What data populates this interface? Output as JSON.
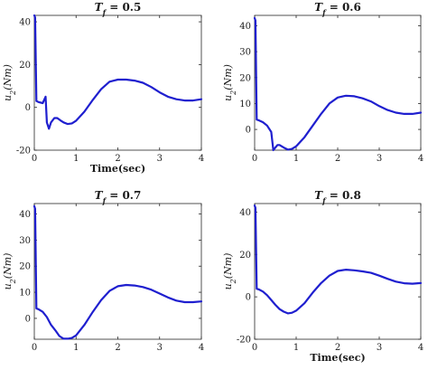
{
  "chart_data": [
    {
      "type": "line",
      "title": "T_f = 0.5",
      "xlabel": "Time(sec)",
      "ylabel": "u_2(Nm)",
      "xlim": [
        0,
        4
      ],
      "ylim": [
        -20,
        43
      ],
      "xticks": [
        "0",
        "1",
        "2",
        "3",
        "4"
      ],
      "xtick_values": [
        0,
        1,
        2,
        3,
        4
      ],
      "yticks": [
        "-20",
        "0",
        "20",
        "40"
      ],
      "ytick_values": [
        -20,
        0,
        20,
        40
      ],
      "color": "#1f1fcf",
      "series": [
        {
          "x": [
            0,
            0.02,
            0.05,
            0.1,
            0.2,
            0.27,
            0.3,
            0.35,
            0.4,
            0.48,
            0.55,
            0.62,
            0.7,
            0.8,
            0.9,
            1.0,
            1.2,
            1.4,
            1.6,
            1.8,
            2.0,
            2.2,
            2.4,
            2.6,
            2.8,
            3.0,
            3.2,
            3.4,
            3.6,
            3.8,
            4.0
          ],
          "y": [
            43,
            42,
            3,
            2.5,
            2,
            5,
            -7,
            -10,
            -7,
            -5,
            -5,
            -6,
            -7,
            -7.8,
            -7.5,
            -6.2,
            -2,
            3.5,
            8.5,
            12,
            13,
            13,
            12.5,
            11.5,
            9.5,
            7,
            5,
            3.8,
            3.2,
            3.2,
            3.8
          ]
        }
      ]
    },
    {
      "type": "line",
      "title": "T_f = 0.6",
      "xlabel": "",
      "ylabel": "u_2(Nm)",
      "xlim": [
        0,
        4
      ],
      "ylim": [
        -8,
        44
      ],
      "xticks": [
        "0",
        "1",
        "2",
        "3",
        "4"
      ],
      "xtick_values": [
        0,
        1,
        2,
        3,
        4
      ],
      "yticks": [
        "0",
        "10",
        "20",
        "30",
        "40"
      ],
      "ytick_values": [
        0,
        10,
        20,
        30,
        40
      ],
      "color": "#1f1fcf",
      "series": [
        {
          "x": [
            0,
            0.02,
            0.05,
            0.1,
            0.2,
            0.3,
            0.4,
            0.45,
            0.5,
            0.55,
            0.6,
            0.65,
            0.7,
            0.8,
            0.9,
            1.0,
            1.2,
            1.4,
            1.6,
            1.8,
            2.0,
            2.2,
            2.4,
            2.6,
            2.8,
            3.0,
            3.2,
            3.4,
            3.6,
            3.8,
            4.0
          ],
          "y": [
            43,
            42,
            3.8,
            3.5,
            2.8,
            1.5,
            -1,
            -8,
            -7,
            -6,
            -6,
            -6.5,
            -7,
            -7.8,
            -7.5,
            -6.5,
            -3,
            1.5,
            6,
            10,
            12.3,
            13,
            12.8,
            12,
            10.8,
            9,
            7.5,
            6.5,
            6,
            6,
            6.5
          ]
        }
      ]
    },
    {
      "type": "line",
      "title": "T_f = 0.7",
      "xlabel": "",
      "ylabel": "u_2(Nm)",
      "xlim": [
        0,
        4
      ],
      "ylim": [
        -8,
        44
      ],
      "xticks": [
        "0",
        "1",
        "2",
        "3",
        "4"
      ],
      "xtick_values": [
        0,
        1,
        2,
        3,
        4
      ],
      "yticks": [
        "0",
        "10",
        "20",
        "30",
        "40"
      ],
      "ytick_values": [
        0,
        10,
        20,
        30,
        40
      ],
      "color": "#1f1fcf",
      "series": [
        {
          "x": [
            0,
            0.02,
            0.05,
            0.1,
            0.2,
            0.3,
            0.4,
            0.5,
            0.6,
            0.7,
            0.8,
            0.9,
            1.0,
            1.2,
            1.4,
            1.6,
            1.8,
            2.0,
            2.2,
            2.4,
            2.6,
            2.8,
            3.0,
            3.2,
            3.4,
            3.6,
            3.8,
            4.0
          ],
          "y": [
            43,
            42,
            3.8,
            3.5,
            2.5,
            0.5,
            -2.5,
            -4.5,
            -6.8,
            -7.8,
            -7.8,
            -7.5,
            -6.5,
            -2.5,
            2.5,
            7,
            10.5,
            12.3,
            12.8,
            12.6,
            12,
            11,
            9.5,
            8,
            6.8,
            6.2,
            6.2,
            6.5
          ]
        }
      ]
    },
    {
      "type": "line",
      "title": "T_f = 0.8",
      "xlabel": "Time(sec)",
      "ylabel": "u_2(Nm)",
      "xlim": [
        0,
        4
      ],
      "ylim": [
        -20,
        44
      ],
      "xticks": [
        "0",
        "1",
        "2",
        "3",
        "4"
      ],
      "xtick_values": [
        0,
        1,
        2,
        3,
        4
      ],
      "yticks": [
        "-20",
        "0",
        "20",
        "40"
      ],
      "ytick_values": [
        -20,
        0,
        20,
        40
      ],
      "color": "#1f1fcf",
      "series": [
        {
          "x": [
            0,
            0.02,
            0.05,
            0.1,
            0.2,
            0.3,
            0.4,
            0.5,
            0.6,
            0.7,
            0.8,
            0.9,
            1.0,
            1.2,
            1.4,
            1.6,
            1.8,
            2.0,
            2.2,
            2.4,
            2.6,
            2.8,
            3.0,
            3.2,
            3.4,
            3.6,
            3.8,
            4.0
          ],
          "y": [
            43,
            42,
            3.8,
            3.5,
            2.5,
            0.8,
            -1.5,
            -3.8,
            -5.8,
            -7,
            -7.8,
            -7.5,
            -6.5,
            -3,
            2,
            6.5,
            10,
            12.2,
            12.8,
            12.5,
            12,
            11.3,
            10,
            8.5,
            7.2,
            6.4,
            6.2,
            6.5
          ]
        }
      ]
    }
  ]
}
